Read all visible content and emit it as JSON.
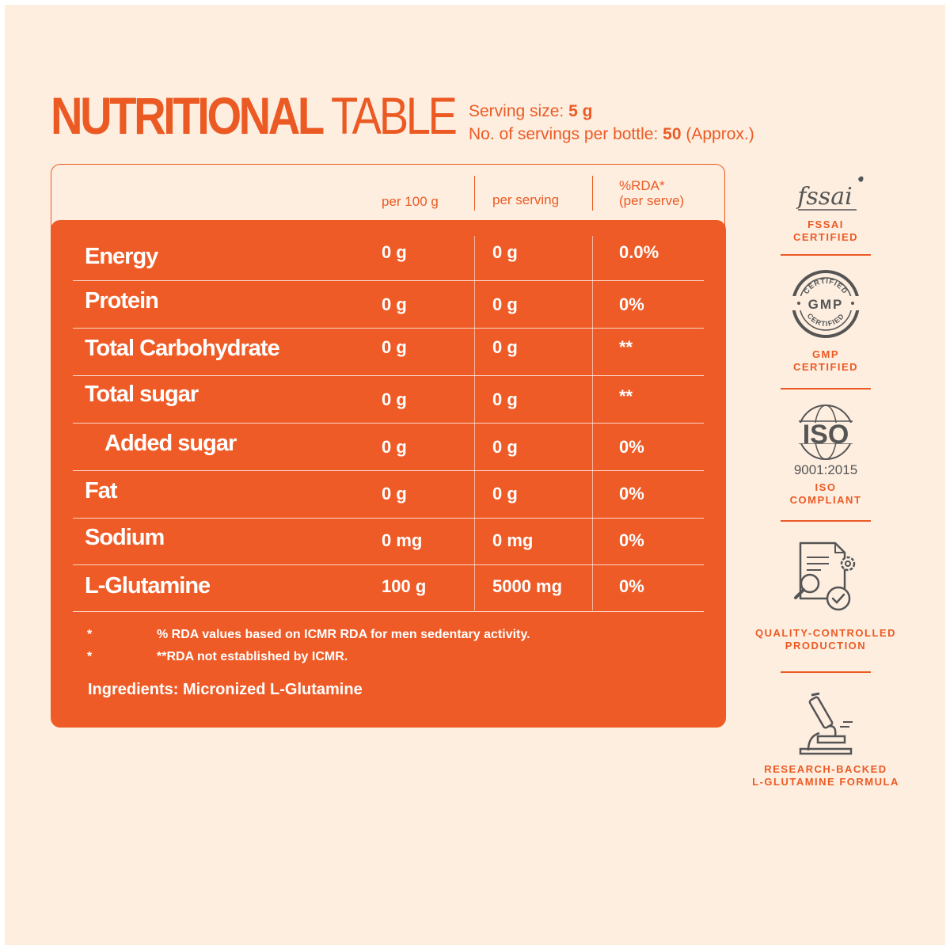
{
  "header": {
    "title_bold": "NUTRITIONAL",
    "title_light": "TABLE",
    "serving_label": "Serving size:",
    "serving_value": "5 g",
    "servings_label": "No. of servings per bottle:",
    "servings_value": "50",
    "servings_note": "(Approx.)"
  },
  "columns": {
    "per100": "per 100 g",
    "perserving": "per serving",
    "rda_line1": "%RDA*",
    "rda_line2": "(per serve)"
  },
  "rows": [
    {
      "name": "Energy",
      "per100": "0 g",
      "perserving": "0 g",
      "rda": "0.0%"
    },
    {
      "name": "Protein",
      "per100": "0 g",
      "perserving": "0 g",
      "rda": "0%"
    },
    {
      "name": "Total Carbohydrate",
      "per100": "0 g",
      "perserving": "0 g",
      "rda": "**"
    },
    {
      "name": "Total sugar",
      "per100": "0 g",
      "perserving": "0 g",
      "rda": "**"
    },
    {
      "name": "Added sugar",
      "per100": "0 g",
      "perserving": "0 g",
      "rda": "0%"
    },
    {
      "name": "Fat",
      "per100": "0 g",
      "perserving": "0 g",
      "rda": "0%"
    },
    {
      "name": "Sodium",
      "per100": "0 mg",
      "perserving": "0 mg",
      "rda": "0%"
    },
    {
      "name": "L-Glutamine",
      "per100": "100 g",
      "perserving": "5000 mg",
      "rda": "0%"
    }
  ],
  "footnotes": [
    {
      "mark": "*",
      "text": "% RDA values based on ICMR RDA for men sedentary activity."
    },
    {
      "mark": "*",
      "text": "**RDA not established by ICMR."
    }
  ],
  "ingredients": "Ingredients: Micronized L-Glutamine",
  "badges": {
    "fssai": {
      "icon": "fssai-logo-icon",
      "logo_text": "fssai",
      "line1": "FSSAI",
      "line2": "CERTIFIED"
    },
    "gmp": {
      "icon": "gmp-seal-icon",
      "seal_text": "GMP",
      "ring_text": "CERTIFIED",
      "line1": "GMP",
      "line2": "CERTIFIED"
    },
    "iso": {
      "icon": "iso-globe-icon",
      "logo_text": "ISO",
      "number": "9001:2015",
      "line1": "ISO",
      "line2": "COMPLIANT"
    },
    "quality": {
      "icon": "document-gear-check-icon",
      "line1": "QUALITY-CONTROLLED",
      "line2": "PRODUCTION"
    },
    "research": {
      "icon": "microscope-icon",
      "line1": "RESEARCH-BACKED",
      "line2": "L-GLUTAMINE FORMULA"
    }
  },
  "colors": {
    "accent": "#ec5a24",
    "panel": "#ef5b26",
    "background": "#fdeee0",
    "icon_grey": "#555555"
  }
}
